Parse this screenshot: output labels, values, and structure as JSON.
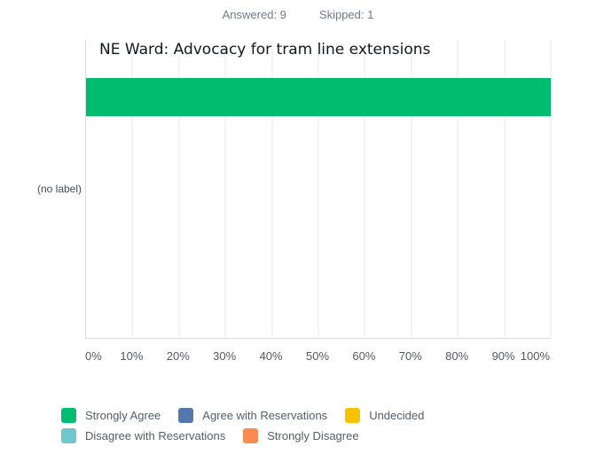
{
  "header": {
    "answered": "Answered: 9",
    "skipped": "Skipped: 1"
  },
  "chart_data": {
    "type": "bar",
    "orientation": "horizontal",
    "title": "NE Ward: Advocacy for tram line extensions",
    "categories": [
      "(no label)"
    ],
    "series": [
      {
        "name": "Strongly Agree",
        "values": [
          100
        ],
        "color": "#00BC6F"
      },
      {
        "name": "Agree with Reservations",
        "values": [
          0
        ],
        "color": "#5278AE"
      },
      {
        "name": "Undecided",
        "values": [
          0
        ],
        "color": "#F5C400"
      },
      {
        "name": "Disagree with Reservations",
        "values": [
          0
        ],
        "color": "#6FC7CB"
      },
      {
        "name": "Strongly Disagree",
        "values": [
          0
        ],
        "color": "#F98C55"
      }
    ],
    "x_ticks": [
      "0%",
      "10%",
      "20%",
      "30%",
      "40%",
      "50%",
      "60%",
      "70%",
      "80%",
      "90%",
      "100%"
    ],
    "xlim": [
      0,
      100
    ],
    "grid": "vertical",
    "legend_position": "bottom"
  },
  "colors": {
    "bar_green": "#00BC6F",
    "gridline": "#E9EAEB",
    "axis_line": "#D9DBDD",
    "header_text": "#6F7C86",
    "tick_text": "#4F5A66",
    "legend_text": "#545E66",
    "title_text": "#15181B"
  }
}
